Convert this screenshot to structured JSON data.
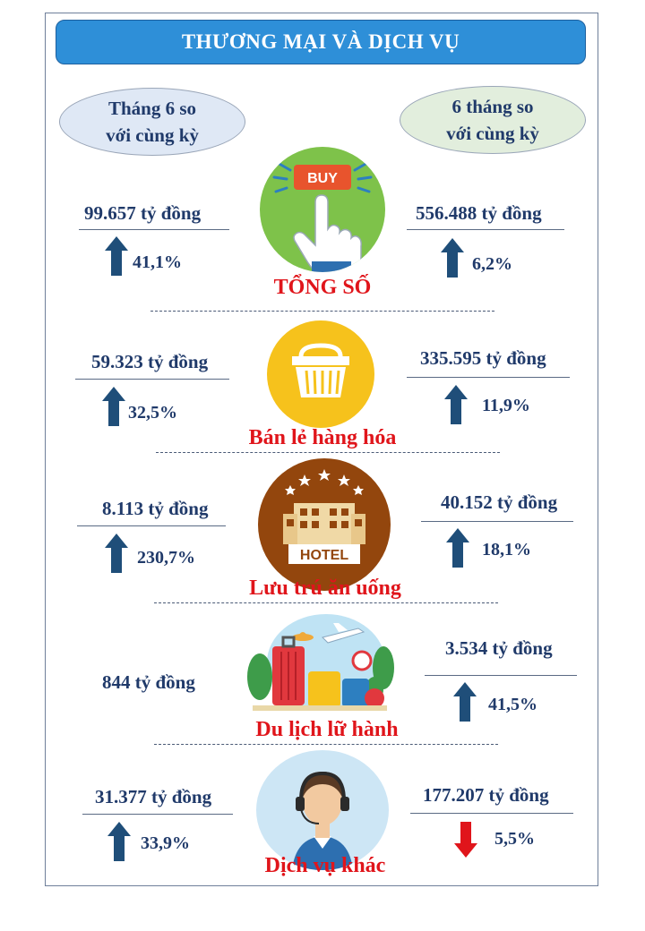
{
  "title": "THƯƠNG MẠI VÀ DỊCH VỤ",
  "header_left": [
    "Tháng 6 so",
    "với cùng kỳ"
  ],
  "header_right": [
    "6 tháng so",
    "với cùng kỳ"
  ],
  "icons": {
    "total": "buy-button-hand-icon",
    "retail": "shopping-basket-icon",
    "hotel": "hotel-building-icon",
    "travel": "travel-luggage-icon",
    "other": "customer-service-agent-icon"
  },
  "colors": {
    "banner": "#2e8fd8",
    "up": "#1f4e79",
    "down": "#e0151b",
    "category": "#e0151b",
    "text": "#203a6a"
  },
  "sections": [
    {
      "name": "TỔNG SỐ",
      "left": {
        "value": "99.657 tỷ đồng",
        "change": "41,1%",
        "direction": "up"
      },
      "right": {
        "value": "556.488 tỷ đồng",
        "change": "6,2%",
        "direction": "up"
      }
    },
    {
      "name": "Bán lẻ hàng hóa",
      "left": {
        "value": "59.323 tỷ đồng",
        "change": "32,5%",
        "direction": "up"
      },
      "right": {
        "value": "335.595 tỷ đồng",
        "change": "11,9%",
        "direction": "up"
      }
    },
    {
      "name": "Lưu trú ăn uống",
      "left": {
        "value": "8.113 tỷ đồng",
        "change": "230,7%",
        "direction": "up"
      },
      "right": {
        "value": "40.152 tỷ đồng",
        "change": "18,1%",
        "direction": "up"
      }
    },
    {
      "name": "Du lịch lữ hành",
      "left": {
        "value": "844 tỷ đồng"
      },
      "right": {
        "value": "3.534 tỷ đồng",
        "change": "41,5%",
        "direction": "up"
      }
    },
    {
      "name": "Dịch vụ khác",
      "left": {
        "value": "31.377 tỷ đồng",
        "change": "33,9%",
        "direction": "up"
      },
      "right": {
        "value": "177.207 tỷ đồng",
        "change": "5,5%",
        "direction": "down"
      }
    }
  ]
}
